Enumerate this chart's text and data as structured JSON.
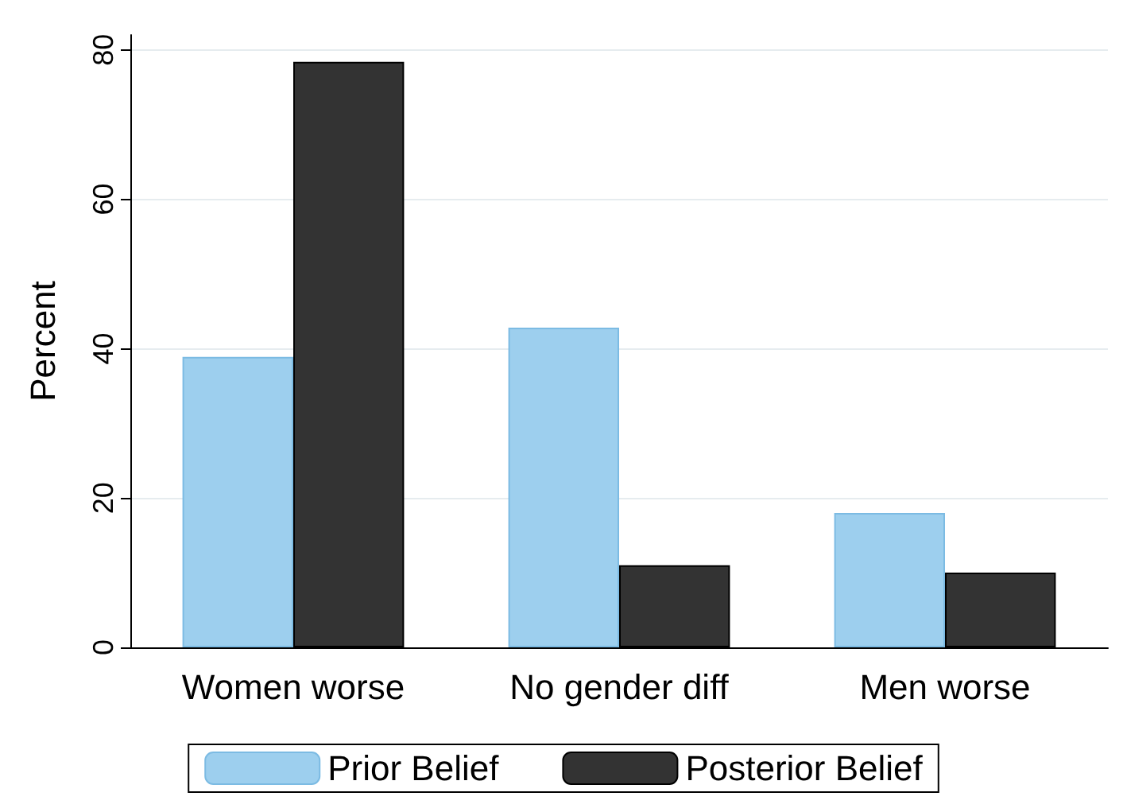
{
  "chart_data": {
    "type": "bar",
    "ylabel": "Percent",
    "categories": [
      "Women worse",
      "No gender diff",
      "Men worse"
    ],
    "series": [
      {
        "name": "Prior Belief",
        "color": "#9dcfee",
        "values": [
          38.9,
          42.8,
          18.0
        ]
      },
      {
        "name": "Posterior Belief",
        "color": "#333333",
        "values": [
          78.4,
          11.0,
          10.0
        ]
      }
    ],
    "ylim": [
      0,
      82
    ],
    "yticks": [
      0,
      20,
      40,
      60,
      80
    ],
    "grid": "y",
    "legend": "bottom"
  }
}
